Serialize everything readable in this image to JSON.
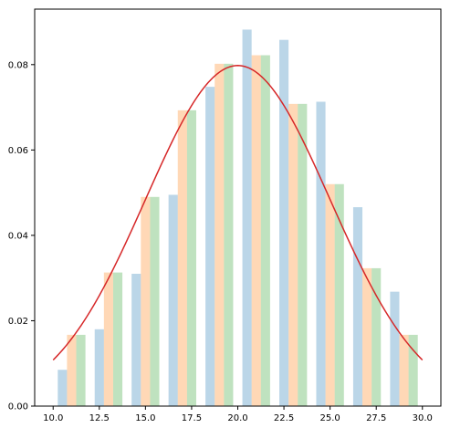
{
  "chart_data": {
    "type": "bar",
    "title": "",
    "xlabel": "",
    "ylabel": "",
    "xlim": [
      9.0,
      31.0
    ],
    "ylim": [
      0.0,
      0.093
    ],
    "xticks": [
      10.0,
      12.5,
      15.0,
      17.5,
      20.0,
      22.5,
      25.0,
      27.5,
      30.0
    ],
    "yticks": [
      0.0,
      0.02,
      0.04,
      0.06,
      0.08
    ],
    "xtick_labels": [
      "10.0",
      "12.5",
      "15.0",
      "17.5",
      "20.0",
      "22.5",
      "25.0",
      "27.5",
      "30.0"
    ],
    "ytick_labels": [
      "0.00",
      "0.02",
      "0.04",
      "0.06",
      "0.08"
    ],
    "grid": false,
    "legend": false,
    "bar_width": 0.5,
    "series": [
      {
        "color": "#1f77b4",
        "opacity": 0.3,
        "x": [
          10.5,
          12.5,
          14.5,
          16.5,
          18.5,
          20.5,
          22.5,
          24.5,
          26.5,
          28.5
        ],
        "values": [
          0.0085,
          0.018,
          0.031,
          0.0495,
          0.0748,
          0.0882,
          0.0858,
          0.0713,
          0.0466,
          0.0268
        ]
      },
      {
        "color": "#ff7f0e",
        "opacity": 0.3,
        "x": [
          11.0,
          13.0,
          15.0,
          17.0,
          19.0,
          21.0,
          23.0,
          25.0,
          27.0,
          29.0
        ],
        "values": [
          0.0167,
          0.0313,
          0.049,
          0.0693,
          0.0802,
          0.0822,
          0.0708,
          0.052,
          0.0323,
          0.0167
        ]
      },
      {
        "color": "#2ca02c",
        "opacity": 0.3,
        "x": [
          11.5,
          13.5,
          15.5,
          17.5,
          19.5,
          21.5,
          23.5,
          25.5,
          27.5,
          29.5
        ],
        "values": [
          0.0167,
          0.0313,
          0.049,
          0.0693,
          0.0802,
          0.0822,
          0.0708,
          0.052,
          0.0323,
          0.0167
        ]
      }
    ],
    "curve": {
      "type": "line",
      "color": "#d62728",
      "distribution": "normal",
      "mean": 20.0,
      "std": 5.0,
      "x_range": [
        10.0,
        30.0
      ]
    }
  }
}
